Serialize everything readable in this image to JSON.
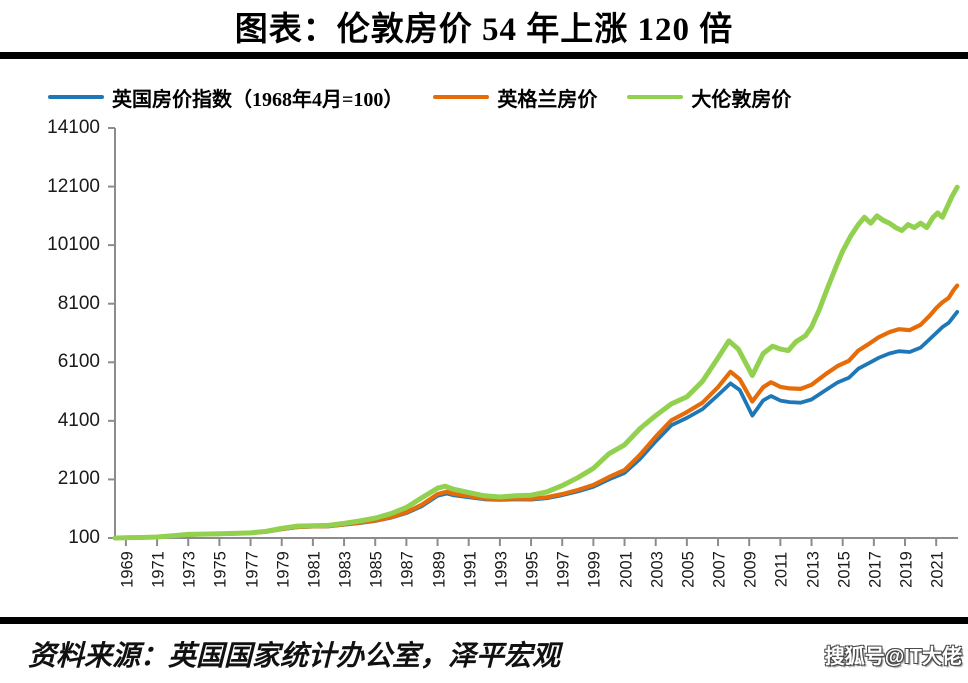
{
  "page": {
    "title": "图表：伦敦房价 54 年上涨 120 倍",
    "source_note": "资料来源：英国国家统计办公室，泽平宏观",
    "watermark": "搜狐号@IT大佬"
  },
  "colors": {
    "uk_blue": "#1e78b8",
    "england_orange": "#e66c09",
    "london_green": "#92d050",
    "axis_gray": "#8c8c8c",
    "rule_black": "#000000",
    "tick_text": "#1a1a1a"
  },
  "chart_data": {
    "type": "line",
    "title": "图表：伦敦房价 54 年上涨 120 倍",
    "xlabel": "",
    "ylabel": "",
    "grid": false,
    "legend_position": "top",
    "ylim": [
      100,
      14100
    ],
    "y_ticks": [
      100,
      2100,
      4100,
      6100,
      8100,
      10100,
      12100,
      14100
    ],
    "x_tick_years": [
      1969,
      1971,
      1973,
      1975,
      1977,
      1979,
      1981,
      1983,
      1985,
      1987,
      1989,
      1991,
      1993,
      1995,
      1997,
      1999,
      2001,
      2003,
      2005,
      2007,
      2009,
      2011,
      2013,
      2015,
      2017,
      2019,
      2021
    ],
    "x_domain_years": [
      1968.3,
      2022.4
    ],
    "series": [
      {
        "name": "英国房价指数（1968年4月=100）",
        "color": "#1e78b8",
        "stroke_width": 3.8,
        "points": [
          [
            1968.3,
            100
          ],
          [
            1969,
            108
          ],
          [
            1970,
            115
          ],
          [
            1971,
            128
          ],
          [
            1972,
            165
          ],
          [
            1973,
            207
          ],
          [
            1974,
            222
          ],
          [
            1975,
            235
          ],
          [
            1976,
            250
          ],
          [
            1977,
            268
          ],
          [
            1978,
            310
          ],
          [
            1979,
            400
          ],
          [
            1980,
            470
          ],
          [
            1981,
            490
          ],
          [
            1982,
            500
          ],
          [
            1983,
            555
          ],
          [
            1984,
            610
          ],
          [
            1985,
            680
          ],
          [
            1986,
            790
          ],
          [
            1987,
            950
          ],
          [
            1988,
            1190
          ],
          [
            1989,
            1540
          ],
          [
            1989.6,
            1620
          ],
          [
            1990,
            1560
          ],
          [
            1991,
            1490
          ],
          [
            1992,
            1420
          ],
          [
            1993,
            1400
          ],
          [
            1994,
            1420
          ],
          [
            1995,
            1410
          ],
          [
            1996,
            1460
          ],
          [
            1997,
            1560
          ],
          [
            1998,
            1690
          ],
          [
            1999,
            1850
          ],
          [
            2000,
            2100
          ],
          [
            2001,
            2320
          ],
          [
            2002,
            2800
          ],
          [
            2003,
            3400
          ],
          [
            2004,
            3950
          ],
          [
            2005,
            4200
          ],
          [
            2006,
            4500
          ],
          [
            2007,
            4980
          ],
          [
            2007.8,
            5380
          ],
          [
            2008.4,
            5150
          ],
          [
            2009.2,
            4280
          ],
          [
            2009.9,
            4800
          ],
          [
            2010.4,
            4950
          ],
          [
            2011,
            4790
          ],
          [
            2011.6,
            4740
          ],
          [
            2012.3,
            4720
          ],
          [
            2013,
            4830
          ],
          [
            2014,
            5180
          ],
          [
            2014.7,
            5420
          ],
          [
            2015.4,
            5570
          ],
          [
            2016,
            5880
          ],
          [
            2016.6,
            6050
          ],
          [
            2017.3,
            6250
          ],
          [
            2018,
            6400
          ],
          [
            2018.6,
            6480
          ],
          [
            2019.3,
            6450
          ],
          [
            2020,
            6600
          ],
          [
            2020.6,
            6900
          ],
          [
            2021,
            7100
          ],
          [
            2021.4,
            7300
          ],
          [
            2021.8,
            7450
          ],
          [
            2022.1,
            7650
          ],
          [
            2022.35,
            7820
          ]
        ]
      },
      {
        "name": "英格兰房价",
        "color": "#e66c09",
        "stroke_width": 4.2,
        "points": [
          [
            1968.3,
            100
          ],
          [
            1969,
            108
          ],
          [
            1970,
            116
          ],
          [
            1971,
            129
          ],
          [
            1972,
            167
          ],
          [
            1973,
            210
          ],
          [
            1974,
            225
          ],
          [
            1975,
            238
          ],
          [
            1976,
            253
          ],
          [
            1977,
            271
          ],
          [
            1978,
            314
          ],
          [
            1979,
            406
          ],
          [
            1980,
            477
          ],
          [
            1981,
            497
          ],
          [
            1982,
            508
          ],
          [
            1983,
            565
          ],
          [
            1984,
            622
          ],
          [
            1985,
            695
          ],
          [
            1986,
            810
          ],
          [
            1987,
            980
          ],
          [
            1988,
            1240
          ],
          [
            1989,
            1600
          ],
          [
            1989.6,
            1680
          ],
          [
            1990,
            1610
          ],
          [
            1991,
            1530
          ],
          [
            1992,
            1450
          ],
          [
            1993,
            1430
          ],
          [
            1994,
            1450
          ],
          [
            1995,
            1440
          ],
          [
            1996,
            1490
          ],
          [
            1997,
            1600
          ],
          [
            1998,
            1740
          ],
          [
            1999,
            1910
          ],
          [
            2000,
            2180
          ],
          [
            2001,
            2420
          ],
          [
            2002,
            2940
          ],
          [
            2003,
            3560
          ],
          [
            2004,
            4120
          ],
          [
            2005,
            4400
          ],
          [
            2006,
            4720
          ],
          [
            2007,
            5250
          ],
          [
            2007.8,
            5780
          ],
          [
            2008.4,
            5520
          ],
          [
            2009.2,
            4760
          ],
          [
            2009.9,
            5250
          ],
          [
            2010.4,
            5420
          ],
          [
            2011,
            5260
          ],
          [
            2011.6,
            5210
          ],
          [
            2012.3,
            5190
          ],
          [
            2013,
            5330
          ],
          [
            2014,
            5730
          ],
          [
            2014.7,
            5980
          ],
          [
            2015.4,
            6150
          ],
          [
            2016,
            6500
          ],
          [
            2016.6,
            6700
          ],
          [
            2017.3,
            6950
          ],
          [
            2018,
            7130
          ],
          [
            2018.6,
            7230
          ],
          [
            2019.3,
            7200
          ],
          [
            2020,
            7380
          ],
          [
            2020.6,
            7700
          ],
          [
            2021,
            7950
          ],
          [
            2021.4,
            8150
          ],
          [
            2021.8,
            8300
          ],
          [
            2022.1,
            8550
          ],
          [
            2022.35,
            8720
          ]
        ]
      },
      {
        "name": "大伦敦房价",
        "color": "#92d050",
        "stroke_width": 5,
        "points": [
          [
            1968.3,
            100
          ],
          [
            1969,
            110
          ],
          [
            1970,
            118
          ],
          [
            1971,
            133
          ],
          [
            1972,
            178
          ],
          [
            1973,
            222
          ],
          [
            1974,
            232
          ],
          [
            1975,
            242
          ],
          [
            1976,
            256
          ],
          [
            1977,
            275
          ],
          [
            1978,
            330
          ],
          [
            1979,
            430
          ],
          [
            1980,
            505
          ],
          [
            1981,
            520
          ],
          [
            1982,
            530
          ],
          [
            1983,
            600
          ],
          [
            1984,
            680
          ],
          [
            1985,
            780
          ],
          [
            1986,
            930
          ],
          [
            1987,
            1140
          ],
          [
            1988,
            1480
          ],
          [
            1989,
            1800
          ],
          [
            1989.5,
            1870
          ],
          [
            1990,
            1770
          ],
          [
            1991,
            1650
          ],
          [
            1992,
            1540
          ],
          [
            1993,
            1500
          ],
          [
            1994,
            1545
          ],
          [
            1995,
            1560
          ],
          [
            1996,
            1670
          ],
          [
            1997,
            1890
          ],
          [
            1998,
            2160
          ],
          [
            1999,
            2480
          ],
          [
            2000,
            2980
          ],
          [
            2001,
            3280
          ],
          [
            2002,
            3840
          ],
          [
            2003,
            4280
          ],
          [
            2004,
            4680
          ],
          [
            2005,
            4920
          ],
          [
            2006,
            5450
          ],
          [
            2007,
            6250
          ],
          [
            2007.7,
            6830
          ],
          [
            2008.3,
            6550
          ],
          [
            2009.2,
            5650
          ],
          [
            2009.9,
            6400
          ],
          [
            2010.5,
            6650
          ],
          [
            2011,
            6550
          ],
          [
            2011.5,
            6500
          ],
          [
            2012,
            6800
          ],
          [
            2012.6,
            7000
          ],
          [
            2013,
            7300
          ],
          [
            2013.5,
            7900
          ],
          [
            2014,
            8600
          ],
          [
            2014.6,
            9400
          ],
          [
            2015,
            9900
          ],
          [
            2015.5,
            10400
          ],
          [
            2016,
            10800
          ],
          [
            2016.4,
            11050
          ],
          [
            2016.8,
            10850
          ],
          [
            2017.2,
            11100
          ],
          [
            2017.6,
            10950
          ],
          [
            2018,
            10850
          ],
          [
            2018.4,
            10700
          ],
          [
            2018.8,
            10600
          ],
          [
            2019.2,
            10800
          ],
          [
            2019.6,
            10700
          ],
          [
            2020,
            10850
          ],
          [
            2020.4,
            10700
          ],
          [
            2020.8,
            11050
          ],
          [
            2021.1,
            11200
          ],
          [
            2021.4,
            11050
          ],
          [
            2021.7,
            11400
          ],
          [
            2022,
            11750
          ],
          [
            2022.35,
            12080
          ]
        ]
      }
    ]
  }
}
